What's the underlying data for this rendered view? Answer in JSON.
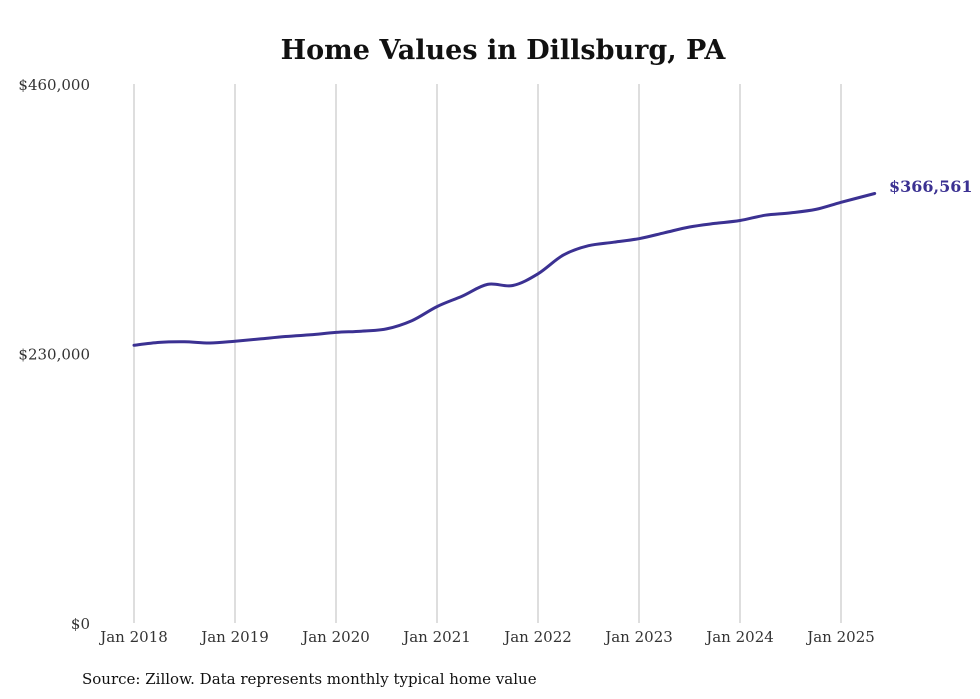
{
  "chart_data": {
    "type": "line",
    "title": "Home Values in Dillsburg, PA",
    "xlabel": "",
    "ylabel": "",
    "ylim": [
      0,
      460000
    ],
    "y_ticks": [
      {
        "value": 0,
        "label": "$0"
      },
      {
        "value": 230000,
        "label": "$230,000"
      },
      {
        "value": 460000,
        "label": "$460,000"
      }
    ],
    "x_ticks": [
      "Jan 2018",
      "Jan 2019",
      "Jan 2020",
      "Jan 2021",
      "Jan 2022",
      "Jan 2023",
      "Jan 2024",
      "Jan 2025"
    ],
    "grid": "vertical",
    "line_color": "#3b3192",
    "end_label": "$366,561",
    "series": [
      {
        "points": [
          [
            "2018-01",
            237000
          ],
          [
            "2018-04",
            239500
          ],
          [
            "2018-07",
            240000
          ],
          [
            "2018-10",
            239000
          ],
          [
            "2019-01",
            240500
          ],
          [
            "2019-04",
            242500
          ],
          [
            "2019-07",
            244500
          ],
          [
            "2019-10",
            246000
          ],
          [
            "2020-01",
            248000
          ],
          [
            "2020-04",
            249000
          ],
          [
            "2020-07",
            251000
          ],
          [
            "2020-10",
            258000
          ],
          [
            "2021-01",
            270000
          ],
          [
            "2021-04",
            279000
          ],
          [
            "2021-07",
            289000
          ],
          [
            "2021-10",
            288000
          ],
          [
            "2022-01",
            298000
          ],
          [
            "2022-04",
            314000
          ],
          [
            "2022-07",
            322000
          ],
          [
            "2022-10",
            325000
          ],
          [
            "2023-01",
            328000
          ],
          [
            "2023-04",
            333000
          ],
          [
            "2023-07",
            338000
          ],
          [
            "2023-10",
            341000
          ],
          [
            "2024-01",
            343500
          ],
          [
            "2024-04",
            348000
          ],
          [
            "2024-07",
            350000
          ],
          [
            "2024-10",
            353000
          ],
          [
            "2025-01",
            359000
          ],
          [
            "2025-05",
            366561
          ]
        ]
      }
    ]
  },
  "source_note": "Source: Zillow. Data represents monthly typical home value"
}
